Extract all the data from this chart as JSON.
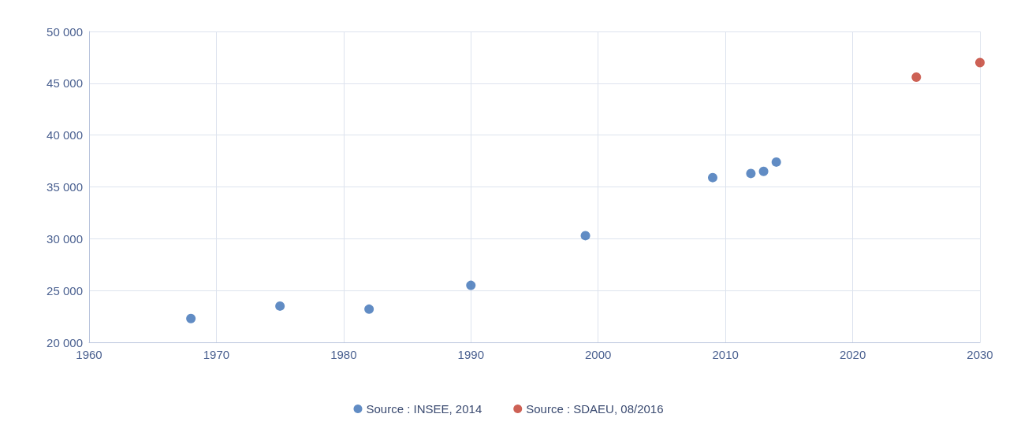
{
  "chart_data": {
    "type": "scatter",
    "xlim": [
      1960,
      2030
    ],
    "xticks": [
      1960,
      1970,
      1980,
      1990,
      2000,
      2010,
      2020,
      2030
    ],
    "ylim": [
      20000,
      50000
    ],
    "yticks": [
      {
        "value": 20000,
        "label": "20 000"
      },
      {
        "value": 25000,
        "label": "25 000"
      },
      {
        "value": 30000,
        "label": "30 000"
      },
      {
        "value": 35000,
        "label": "35 000"
      },
      {
        "value": 40000,
        "label": "40 000"
      },
      {
        "value": 45000,
        "label": "45 000"
      },
      {
        "value": 50000,
        "label": "50 000"
      }
    ],
    "grid": true,
    "legend": "bottom",
    "marker": "circle",
    "series": [
      {
        "name": "Source : INSEE, 2014",
        "color": "#3a6fb5",
        "x": [
          1968,
          1975,
          1982,
          1990,
          1999,
          2009,
          2012,
          2013,
          2014
        ],
        "values": [
          22300,
          23500,
          23200,
          25500,
          30300,
          35900,
          36300,
          36500,
          37400
        ]
      },
      {
        "name": "Source : SDAEU, 08/2016",
        "color": "#c0392b",
        "x": [
          2025,
          2030
        ],
        "values": [
          45600,
          47000
        ]
      }
    ]
  }
}
